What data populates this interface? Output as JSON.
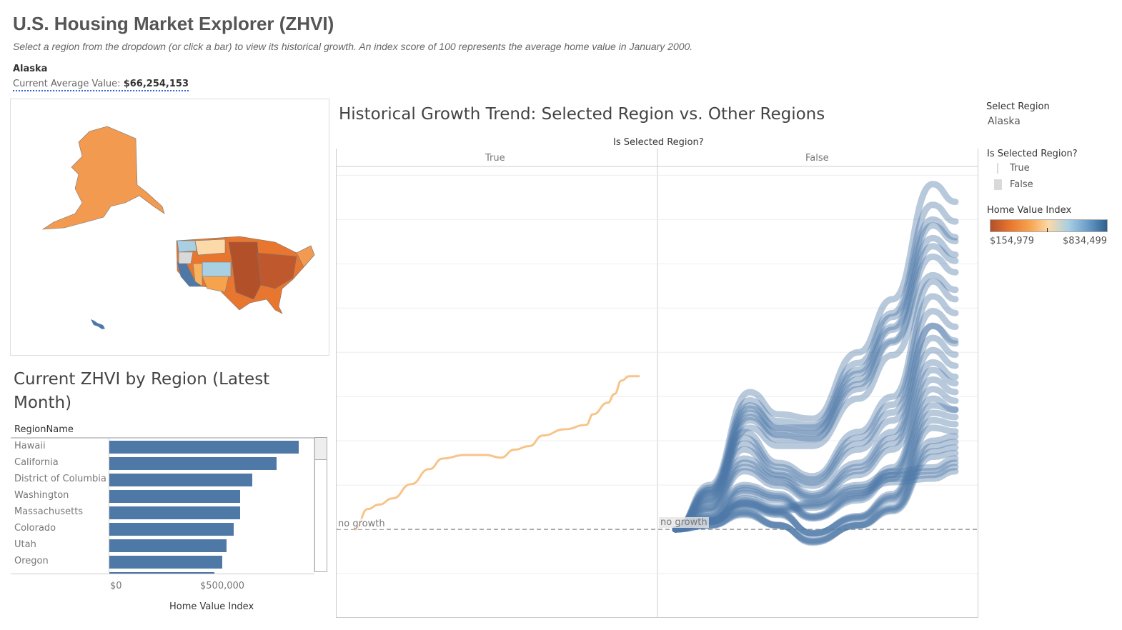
{
  "header": {
    "title": "U.S. Housing Market Explorer (ZHVI)",
    "subtitle": "Select a region from the dropdown (or click a bar) to view its historical growth. An index score of 100 represents the average home value in January 2000."
  },
  "selection": {
    "region": "Alaska",
    "avg_label": "Current Average Value:",
    "avg_value": "$66,254,153"
  },
  "bar_panel": {
    "title": "Current ZHVI by Region (Latest Month)",
    "column_header": "RegionName",
    "x_label": "Home Value Index"
  },
  "line_panel": {
    "title": "Historical Growth Trend: Selected Region vs. Other Regions",
    "facet_header": "Is Selected Region?",
    "facets": [
      "True",
      "False"
    ],
    "ref_label": "no growth"
  },
  "filters": {
    "select_region_label": "Select Region",
    "select_region_value": "Alaska"
  },
  "legend": {
    "title": "Is Selected Region?",
    "items": [
      {
        "label": "True",
        "color": "#d9d9d9"
      },
      {
        "label": "False",
        "color": "#d9d9d9"
      }
    ],
    "color_title": "Home Value Index",
    "color_min": "$154,979",
    "color_max": "$834,499",
    "gradient": [
      "#b2502a",
      "#e8762f",
      "#f7a24d",
      "#fbd9a8",
      "#a9cfe3",
      "#6a9ec9",
      "#2f5f8f"
    ]
  },
  "colors": {
    "selected": "#f7c48a",
    "other": "#4e79a7",
    "bar": "#4e79a7"
  },
  "chart_data": [
    {
      "type": "bar",
      "categories": [
        "Hawaii",
        "California",
        "District of Columbia",
        "Washington",
        "Massachusetts",
        "Colorado",
        "Utah",
        "Oregon",
        ""
      ],
      "values": [
        838000,
        740000,
        633000,
        579000,
        579000,
        551000,
        519000,
        500000,
        465000
      ],
      "xticks": [
        "$0",
        "$500,000"
      ],
      "xlabel": "Home Value Index",
      "xlim": [
        0,
        900000
      ]
    },
    {
      "type": "line",
      "ylim": [
        0,
        510
      ],
      "xlim": [
        2000,
        2025.5
      ],
      "reference_line": 100,
      "grid": true,
      "selected": {
        "name": "Alaska",
        "points": [
          [
            2000,
            100
          ],
          [
            2001.1,
            123
          ],
          [
            2002.1,
            128
          ],
          [
            2003.3,
            135
          ],
          [
            2004.9,
            151
          ],
          [
            2006.5,
            168
          ],
          [
            2007.7,
            180
          ],
          [
            2009.6,
            184
          ],
          [
            2011.5,
            184
          ],
          [
            2012.8,
            181
          ],
          [
            2014,
            190
          ],
          [
            2015.3,
            194
          ],
          [
            2016.5,
            206
          ],
          [
            2018.4,
            213
          ],
          [
            2020.3,
            218
          ],
          [
            2020.9,
            230
          ],
          [
            2022.2,
            243
          ],
          [
            2022.8,
            253
          ],
          [
            2023.4,
            268
          ],
          [
            2024.1,
            273
          ],
          [
            2025,
            273
          ]
        ]
      },
      "others": [
        [
          [
            2000,
            100
          ],
          [
            2003,
            150
          ],
          [
            2006.5,
            255
          ],
          [
            2009,
            230
          ],
          [
            2012,
            225
          ],
          [
            2016,
            300
          ],
          [
            2019,
            360
          ],
          [
            2022.5,
            490
          ],
          [
            2024.5,
            470
          ]
        ],
        [
          [
            2000,
            100
          ],
          [
            2003,
            145
          ],
          [
            2006.5,
            240
          ],
          [
            2009,
            215
          ],
          [
            2012,
            215
          ],
          [
            2016,
            280
          ],
          [
            2019,
            340
          ],
          [
            2022.5,
            450
          ],
          [
            2024.5,
            430
          ]
        ],
        [
          [
            2000,
            100
          ],
          [
            2003,
            135
          ],
          [
            2006,
            210
          ],
          [
            2009,
            175
          ],
          [
            2012,
            160
          ],
          [
            2016,
            210
          ],
          [
            2019,
            250
          ],
          [
            2022.5,
            380
          ],
          [
            2024.5,
            360
          ]
        ],
        [
          [
            2000,
            100
          ],
          [
            2003,
            125
          ],
          [
            2006,
            180
          ],
          [
            2009,
            160
          ],
          [
            2012,
            140
          ],
          [
            2016,
            175
          ],
          [
            2019,
            210
          ],
          [
            2022.5,
            330
          ],
          [
            2024.5,
            310
          ]
        ],
        [
          [
            2000,
            100
          ],
          [
            2003,
            115
          ],
          [
            2006,
            150
          ],
          [
            2009,
            140
          ],
          [
            2012,
            115
          ],
          [
            2016,
            140
          ],
          [
            2019,
            170
          ],
          [
            2022.5,
            280
          ],
          [
            2024.5,
            265
          ]
        ],
        [
          [
            2000,
            100
          ],
          [
            2003,
            110
          ],
          [
            2006,
            130
          ],
          [
            2009,
            120
          ],
          [
            2012,
            95
          ],
          [
            2016,
            115
          ],
          [
            2019,
            140
          ],
          [
            2022.5,
            240
          ],
          [
            2024.5,
            235
          ]
        ],
        [
          [
            2000,
            100
          ],
          [
            2003,
            105
          ],
          [
            2006,
            120
          ],
          [
            2009,
            105
          ],
          [
            2012,
            85
          ],
          [
            2016,
            105
          ],
          [
            2019,
            125
          ],
          [
            2022.5,
            200
          ],
          [
            2024.5,
            205
          ]
        ],
        [
          [
            2000,
            100
          ],
          [
            2003,
            110
          ],
          [
            2006,
            135
          ],
          [
            2009,
            125
          ],
          [
            2012,
            130
          ],
          [
            2016,
            150
          ],
          [
            2019,
            165
          ],
          [
            2022.5,
            170
          ],
          [
            2024.5,
            180
          ]
        ]
      ]
    }
  ]
}
